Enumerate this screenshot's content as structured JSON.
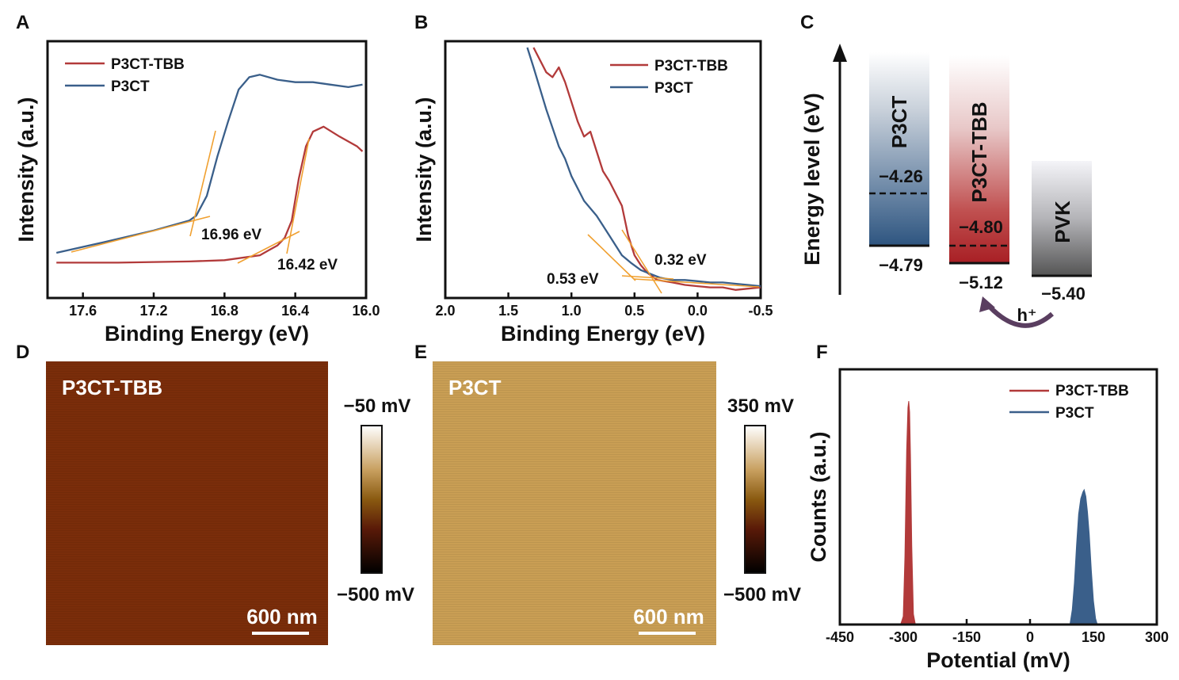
{
  "chart_data": [
    {
      "panel": "A",
      "type": "line",
      "xlabel": "Binding Energy (eV)",
      "ylabel": "Intensity (a.u.)",
      "xlim": [
        17.8,
        16.0
      ],
      "x_reversed": true,
      "xticks": [
        "17.6",
        "17.2",
        "16.8",
        "16.4",
        "16.0"
      ],
      "series": [
        {
          "name": "P3CT-TBB",
          "color": "#b23a3a",
          "x": [
            17.75,
            17.4,
            17.0,
            16.8,
            16.6,
            16.55,
            16.5,
            16.46,
            16.42,
            16.38,
            16.34,
            16.3,
            16.24,
            16.15,
            16.05,
            16.02
          ],
          "y": [
            0.13,
            0.13,
            0.135,
            0.14,
            0.16,
            0.18,
            0.2,
            0.23,
            0.3,
            0.47,
            0.6,
            0.66,
            0.68,
            0.64,
            0.6,
            0.58
          ]
        },
        {
          "name": "P3CT",
          "color": "#3a5f8a",
          "x": [
            17.75,
            17.5,
            17.2,
            17.0,
            16.96,
            16.9,
            16.84,
            16.78,
            16.72,
            16.66,
            16.6,
            16.5,
            16.4,
            16.3,
            16.2,
            16.1,
            16.02
          ],
          "y": [
            0.17,
            0.21,
            0.26,
            0.3,
            0.32,
            0.4,
            0.56,
            0.7,
            0.83,
            0.88,
            0.89,
            0.87,
            0.86,
            0.86,
            0.85,
            0.84,
            0.85
          ]
        }
      ],
      "annotations": [
        "16.96 eV",
        "16.42 eV"
      ]
    },
    {
      "panel": "B",
      "type": "line",
      "xlabel": "Binding Energy (eV)",
      "ylabel": "Intensity (a.u.)",
      "xlim": [
        2.0,
        -0.5
      ],
      "x_reversed": true,
      "xticks": [
        "2.0",
        "1.5",
        "1.0",
        "0.5",
        "0.0",
        "-0.5"
      ],
      "series": [
        {
          "name": "P3CT-TBB",
          "color": "#b23a3a",
          "x": [
            1.3,
            1.2,
            1.15,
            1.1,
            1.05,
            1.0,
            0.95,
            0.9,
            0.85,
            0.8,
            0.75,
            0.7,
            0.6,
            0.55,
            0.5,
            0.45,
            0.4,
            0.32,
            0.2,
            0.1,
            0.0,
            -0.1,
            -0.2,
            -0.3,
            -0.4,
            -0.5
          ],
          "y": [
            1.0,
            0.9,
            0.88,
            0.92,
            0.86,
            0.78,
            0.7,
            0.64,
            0.66,
            0.58,
            0.5,
            0.46,
            0.36,
            0.24,
            0.16,
            0.12,
            0.09,
            0.06,
            0.05,
            0.04,
            0.035,
            0.03,
            0.03,
            0.02,
            0.025,
            0.03
          ]
        },
        {
          "name": "P3CT",
          "color": "#3a5f8a",
          "x": [
            1.35,
            1.3,
            1.2,
            1.1,
            1.05,
            1.0,
            0.9,
            0.8,
            0.7,
            0.6,
            0.53,
            0.45,
            0.4,
            0.3,
            0.2,
            0.1,
            0.0,
            -0.1,
            -0.2,
            -0.3,
            -0.4,
            -0.5
          ],
          "y": [
            1.0,
            0.92,
            0.75,
            0.6,
            0.55,
            0.48,
            0.38,
            0.32,
            0.24,
            0.16,
            0.13,
            0.1,
            0.09,
            0.07,
            0.06,
            0.06,
            0.055,
            0.05,
            0.05,
            0.045,
            0.04,
            0.035
          ]
        }
      ],
      "annotations": [
        "0.53 eV",
        "0.32 eV"
      ]
    },
    {
      "panel": "C",
      "type": "diagram",
      "ylabel": "Energy level (eV)",
      "bars": [
        {
          "name": "P3CT",
          "fermi": "−4.26",
          "valence": "−4.79",
          "color": "#3a5f8a"
        },
        {
          "name": "P3CT-TBB",
          "fermi": "−4.80",
          "valence": "−5.12",
          "color": "#b23a3a"
        },
        {
          "name": "PVK",
          "fermi": "",
          "valence": "−5.40",
          "color": "#6e6e6e"
        }
      ],
      "arrow_label": "h⁺"
    },
    {
      "panel": "D",
      "type": "heatmap",
      "label": "P3CT-TBB",
      "scalebar": "600 nm",
      "colorbar": {
        "max": "−50 mV",
        "min": "−500 mV"
      },
      "surface_color": "#7b2e0b"
    },
    {
      "panel": "E",
      "type": "heatmap",
      "label": "P3CT",
      "scalebar": "600 nm",
      "colorbar": {
        "max": "350 mV",
        "min": "−500 mV"
      },
      "surface_color": "#c79a4f"
    },
    {
      "panel": "F",
      "type": "area",
      "xlabel": "Potential (mV)",
      "ylabel": "Counts (a.u.)",
      "xlim": [
        -450,
        300
      ],
      "xticks": [
        "-450",
        "-300",
        "-150",
        "0",
        "150",
        "300"
      ],
      "series": [
        {
          "name": "P3CT-TBB",
          "color": "#b23a3a",
          "x": [
            -305,
            -300,
            -296,
            -292,
            -289,
            -287,
            -285,
            -283,
            -280,
            -276,
            -272
          ],
          "y": [
            0.0,
            0.03,
            0.3,
            0.78,
            0.97,
            1.0,
            0.95,
            0.75,
            0.35,
            0.04,
            0.0
          ]
        },
        {
          "name": "P3CT",
          "color": "#3a5f8a",
          "x": [
            95,
            100,
            105,
            110,
            115,
            120,
            125,
            128,
            132,
            136,
            140,
            145,
            150,
            155,
            158
          ],
          "y": [
            0.0,
            0.06,
            0.18,
            0.35,
            0.49,
            0.56,
            0.59,
            0.6,
            0.57,
            0.5,
            0.4,
            0.24,
            0.1,
            0.02,
            0.0
          ]
        }
      ]
    }
  ],
  "panel_labels": {
    "a": "A",
    "b": "B",
    "c": "C",
    "d": "D",
    "e": "E",
    "f": "F"
  }
}
